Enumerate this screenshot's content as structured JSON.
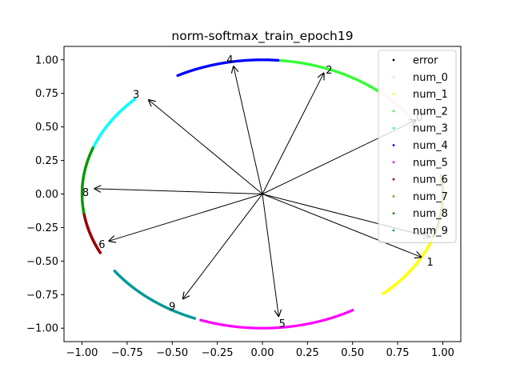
{
  "chart_data": {
    "type": "scatter",
    "title": "norm-softmax_train_epoch19",
    "xlim": [
      -1.1,
      1.1
    ],
    "ylim": [
      -1.1,
      1.1
    ],
    "xticks": [
      "−1.00",
      "−0.75",
      "−0.50",
      "−0.25",
      "0.00",
      "0.25",
      "0.50",
      "0.75",
      "1.00"
    ],
    "xtick_values": [
      -1.0,
      -0.75,
      -0.5,
      -0.25,
      0.0,
      0.25,
      0.5,
      0.75,
      1.0
    ],
    "yticks": [
      "1.00",
      "0.75",
      "0.50",
      "0.25",
      "0.00",
      "−0.25",
      "−0.50",
      "−0.75",
      "−1.00"
    ],
    "ytick_values": [
      1.0,
      0.75,
      0.5,
      0.25,
      0.0,
      -0.25,
      -0.5,
      -0.75,
      -1.0
    ],
    "grid": false,
    "legend_position": "top-right",
    "series": [
      {
        "name": "error",
        "color": "#000000",
        "arc": [
          -48,
          -44
        ],
        "dense": false
      },
      {
        "name": "num_0",
        "color": "#ffcccc",
        "arc": [
          25,
          50
        ]
      },
      {
        "name": "num_1",
        "color": "#ffff00",
        "arc": [
          -48,
          -18
        ]
      },
      {
        "name": "num_2",
        "color": "#33ff33",
        "arc": [
          50,
          85
        ]
      },
      {
        "name": "num_3",
        "color": "#00ffff",
        "arc": [
          135,
          160
        ]
      },
      {
        "name": "num_4",
        "color": "#0000ff",
        "arc": [
          85,
          118
        ]
      },
      {
        "name": "num_5",
        "color": "#ff00ff",
        "arc": [
          -110,
          -60
        ]
      },
      {
        "name": "num_6",
        "color": "#990000",
        "arc": [
          -154,
          -172
        ]
      },
      {
        "name": "num_7",
        "color": "#999900",
        "arc": [
          -18,
          8
        ]
      },
      {
        "name": "num_8",
        "color": "#009900",
        "arc": [
          160,
          188
        ]
      },
      {
        "name": "num_9",
        "color": "#009999",
        "arc": [
          -145,
          -112
        ]
      }
    ],
    "arrows": [
      {
        "label": "0",
        "x": 0.85,
        "y": 0.55
      },
      {
        "label": "1",
        "x": 0.88,
        "y": -0.47
      },
      {
        "label": "2",
        "x": 0.34,
        "y": 0.9
      },
      {
        "label": "3",
        "x": -0.63,
        "y": 0.7
      },
      {
        "label": "4",
        "x": -0.16,
        "y": 0.95
      },
      {
        "label": "5",
        "x": 0.09,
        "y": -0.91
      },
      {
        "label": "6",
        "x": -0.85,
        "y": -0.35
      },
      {
        "label": "7",
        "x": 0.93,
        "y": -0.32
      },
      {
        "label": "8",
        "x": -0.93,
        "y": 0.04
      },
      {
        "label": "9",
        "x": -0.44,
        "y": -0.78
      }
    ],
    "label_offsets": {
      "2": [
        0.03,
        0.02
      ],
      "3": [
        -0.07,
        0.04
      ],
      "4": [
        -0.02,
        0.05
      ],
      "5": [
        0.02,
        -0.06
      ],
      "6": [
        -0.04,
        -0.03
      ],
      "8": [
        -0.05,
        -0.03
      ],
      "9": [
        -0.06,
        -0.06
      ],
      "1": [
        0.05,
        -0.04
      ]
    }
  }
}
